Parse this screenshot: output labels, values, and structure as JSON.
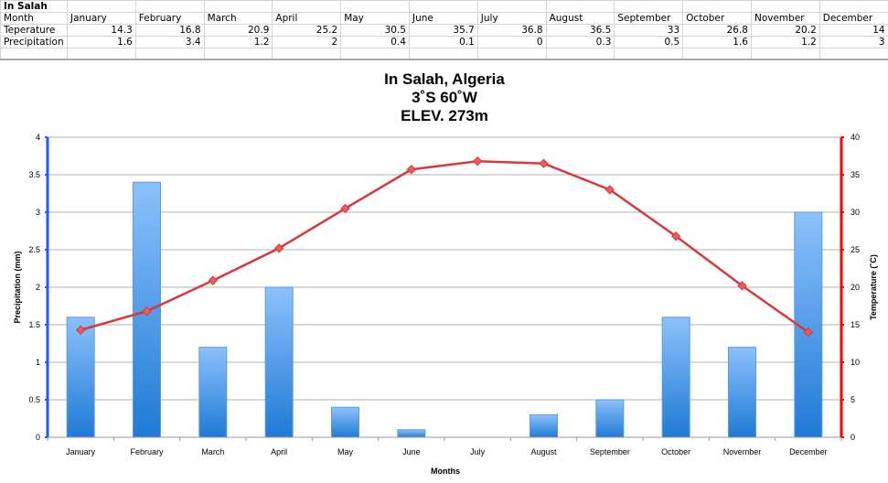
{
  "spreadsheet": {
    "title": "In Salah",
    "header_label": "Month",
    "row_labels": [
      "Teperature",
      "Precipitation"
    ],
    "months": [
      "January",
      "February",
      "March",
      "April",
      "May",
      "June",
      "July",
      "August",
      "September",
      "October",
      "November",
      "December"
    ],
    "temperature": [
      "14.3",
      "16.8",
      "20.9",
      "25.2",
      "30.5",
      "35.7",
      "36.8",
      "36.5",
      "33",
      "26.8",
      "20.2",
      "14"
    ],
    "precipitation": [
      "1.6",
      "3.4",
      "1.2",
      "2",
      "0.4",
      "0.1",
      "0",
      "0.3",
      "0.5",
      "1.6",
      "1.2",
      "3"
    ]
  },
  "chart_data": {
    "type": "bar+line",
    "title": "In Salah, Algeria",
    "subtitle_1": "3˚S 60˚W",
    "subtitle_2": "ELEV. 273m",
    "xlabel": "Months",
    "ylabel_left": "Precipitation (mm)",
    "ylabel_right": "Temperature (˚C)",
    "categories": [
      "January",
      "February",
      "March",
      "April",
      "May",
      "June",
      "July",
      "August",
      "September",
      "October",
      "November",
      "December"
    ],
    "series": [
      {
        "name": "Precipitation",
        "type": "bar",
        "axis": "left",
        "color": "#3a8ee6",
        "values": [
          1.6,
          3.4,
          1.2,
          2,
          0.4,
          0.1,
          0,
          0.3,
          0.5,
          1.6,
          1.2,
          3
        ]
      },
      {
        "name": "Temperature",
        "type": "line",
        "axis": "right",
        "color": "#d9383a",
        "values": [
          14.3,
          16.8,
          20.9,
          25.2,
          30.5,
          35.7,
          36.8,
          36.5,
          33,
          26.8,
          20.2,
          14
        ]
      }
    ],
    "ylim_left": [
      0,
      4
    ],
    "yticks_left": [
      "0",
      "0.5",
      "1",
      "1.5",
      "2",
      "2.5",
      "3",
      "3.5",
      "4"
    ],
    "ylim_right": [
      0,
      40
    ],
    "yticks_right": [
      "0",
      "5",
      "10",
      "15",
      "20",
      "25",
      "30",
      "35",
      "40"
    ],
    "grid": true,
    "left_axis_color": "#1f5cff",
    "right_axis_color": "#ff0000"
  }
}
